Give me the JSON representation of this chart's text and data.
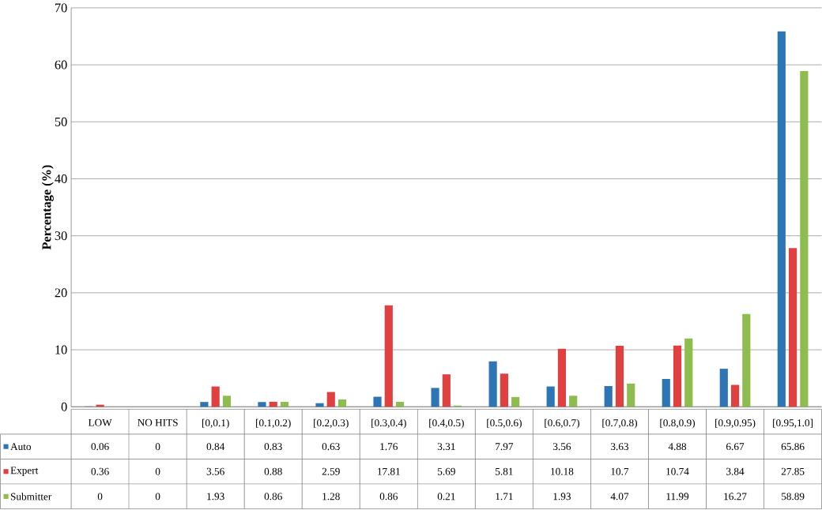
{
  "chart_data": {
    "type": "bar",
    "ylabel": "Percentage (%)",
    "categories": [
      "LOW",
      "NO HITS",
      "[0,0.1)",
      "[0.1,0.2)",
      "[0.2,0.3)",
      "[0.3,0.4)",
      "[0.4,0.5)",
      "[0.5,0.6)",
      "[0.6,0.7)",
      "[0.7,0.8)",
      "[0.8,0.9)",
      "[0.9,0.95)",
      "[0.95,1.0]"
    ],
    "series": [
      {
        "name": "Auto",
        "color": "#2e75b6",
        "values": [
          0.06,
          0,
          0.84,
          0.83,
          0.63,
          1.76,
          3.31,
          7.97,
          3.56,
          3.63,
          4.88,
          6.67,
          65.86
        ]
      },
      {
        "name": "Expert",
        "color": "#e0403f",
        "values": [
          0.36,
          0,
          3.56,
          0.88,
          2.59,
          17.81,
          5.69,
          5.81,
          10.18,
          10.7,
          10.74,
          3.84,
          27.85
        ]
      },
      {
        "name": "Submitter",
        "color": "#8fbc4f",
        "values": [
          0,
          0,
          1.93,
          0.86,
          1.28,
          0.86,
          0.21,
          1.71,
          1.93,
          4.07,
          11.99,
          16.27,
          58.89
        ]
      }
    ],
    "ylim": [
      0,
      70
    ],
    "yticks": [
      0,
      10,
      20,
      30,
      40,
      50,
      60,
      70
    ],
    "grid": "y",
    "data_labels": true,
    "legend": "bottom"
  }
}
